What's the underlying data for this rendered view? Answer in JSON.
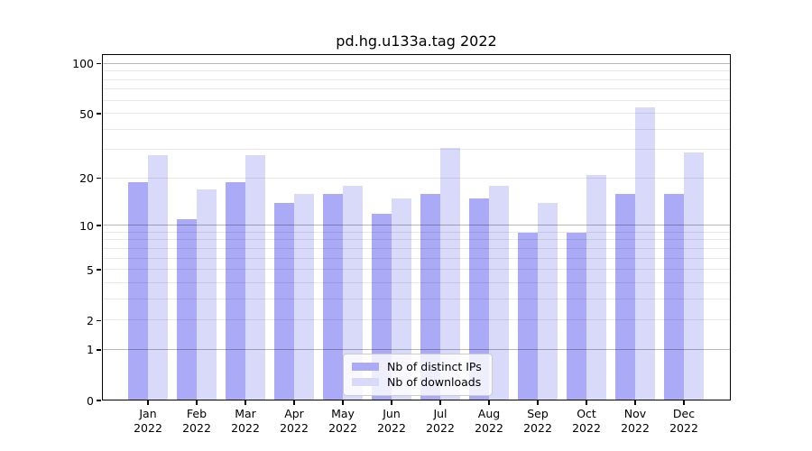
{
  "chart_data": {
    "type": "bar",
    "title": "pd.hg.u133a.tag 2022",
    "categories": [
      "Jan",
      "Feb",
      "Mar",
      "Apr",
      "May",
      "Jun",
      "Jul",
      "Aug",
      "Sep",
      "Oct",
      "Nov",
      "Dec"
    ],
    "year_label": "2022",
    "series": [
      {
        "name": "Nb of distinct IPs",
        "color": "#aaaaf6",
        "values": [
          19,
          11,
          19,
          14,
          16,
          12,
          16,
          15,
          9,
          9,
          16,
          16
        ]
      },
      {
        "name": "Nb of downloads",
        "color": "#d9d9f9",
        "values": [
          28,
          17,
          28,
          16,
          18,
          15,
          31,
          18,
          14,
          21,
          55,
          29
        ]
      }
    ],
    "yscale": "log1p",
    "ylim": [
      0,
      114
    ],
    "ytick_labels": [
      100,
      50,
      20,
      10,
      5,
      2,
      1,
      0
    ],
    "major_gridlines": [
      1,
      10,
      100
    ],
    "minor_gridlines": [
      2,
      3,
      4,
      5,
      6,
      7,
      8,
      9,
      20,
      30,
      40,
      50,
      60,
      70,
      80,
      90
    ],
    "grid": true,
    "legend_position": "lower center",
    "colors": {
      "major_grid": "rgba(0,0,0,0.28)",
      "minor_grid": "rgba(0,0,0,0.09)",
      "spine": "#000000",
      "background": "#ffffff"
    }
  }
}
